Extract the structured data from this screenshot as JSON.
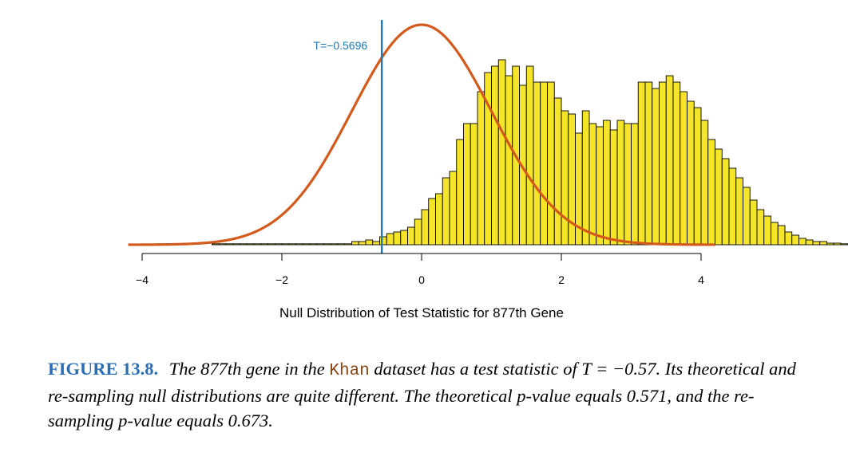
{
  "chart_data": {
    "type": "bar",
    "xlabel": "Null Distribution of Test Statistic for 877th Gene",
    "xlim": [
      -4.2,
      4.2
    ],
    "xticks": [
      -4,
      -2,
      0,
      2,
      4
    ],
    "xtick_labels": [
      "−4",
      "−2",
      "0",
      "2",
      "4"
    ],
    "bin_width": 0.1,
    "histogram": {
      "x_start": -3.0,
      "heights": [
        0.3,
        0.3,
        0.3,
        0.3,
        0.3,
        0.3,
        0.3,
        0.3,
        0.3,
        0.3,
        0.3,
        0.3,
        0.3,
        0.3,
        0.3,
        0.3,
        0.3,
        0.3,
        0.3,
        0.3,
        1.0,
        1.0,
        1.5,
        1.0,
        2.5,
        3.5,
        4.0,
        4.5,
        5.5,
        8.0,
        11.0,
        14.5,
        16.0,
        21.0,
        23.0,
        33.0,
        38.0,
        38.0,
        48.0,
        54.0,
        56.0,
        58.0,
        53.0,
        56.0,
        50.0,
        56.0,
        51.0,
        51.0,
        51.0,
        46.0,
        42.0,
        41.0,
        35.0,
        42.0,
        38.0,
        37.0,
        39.0,
        36.0,
        39.0,
        38.0,
        38.0,
        51.0,
        51.0,
        49.0,
        51.0,
        53.0,
        51.0,
        48.0,
        45.0,
        43.0,
        39.0,
        33.0,
        30.0,
        27.0,
        24.0,
        21.0,
        18.0,
        14.0,
        11.0,
        9.0,
        7.0,
        6.0,
        4.0,
        3.0,
        2.0,
        1.5,
        1.0,
        1.0,
        0.5,
        0.5,
        0.3,
        0.3,
        0.3,
        0.3,
        0.3,
        0.3,
        0.3,
        0.3,
        0.3,
        0.3,
        0.3,
        0.3,
        0.3,
        0.3,
        0.3,
        0.3
      ],
      "color": "#f5e52a",
      "edge_color": "#000000"
    },
    "curve": {
      "description_of_shape": "standard normal density",
      "peak_height": 69.0,
      "color": "#d45a1c"
    },
    "vline": {
      "x": -0.5696,
      "label": "T=−0.5696",
      "color": "#1f77b4"
    }
  },
  "caption": {
    "figure_label": "FIGURE 13.8.",
    "text_before": " The 877th gene in the ",
    "dataset": "Khan",
    "text_after": " dataset has a test statistic of T = −0.57. Its theoretical and re-sampling null distributions are quite different. The theoretical p-value equals 0.571, and the re-sampling p-value equals 0.673."
  }
}
